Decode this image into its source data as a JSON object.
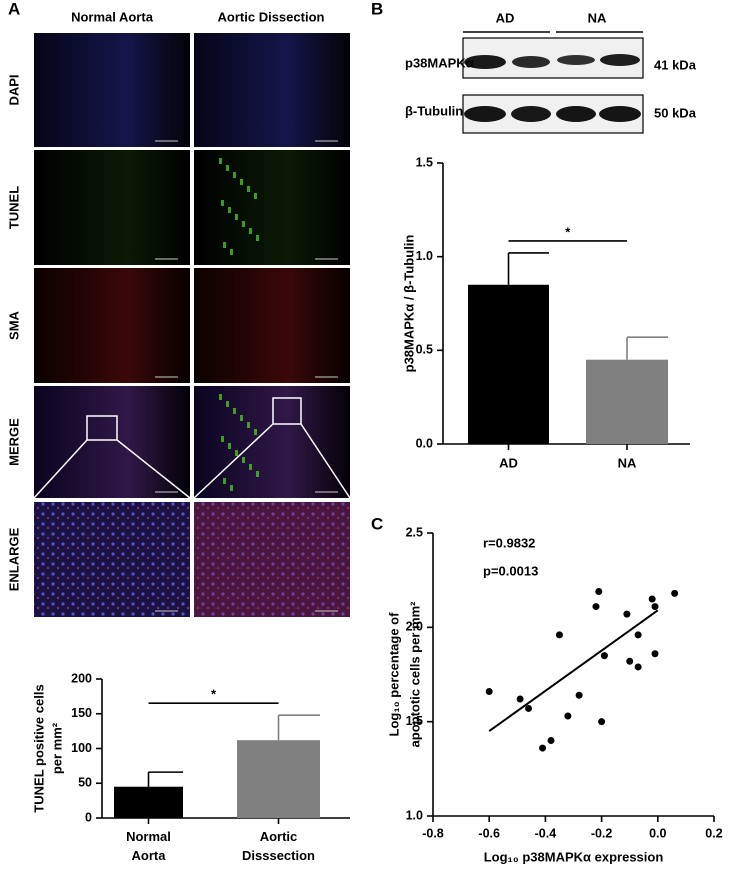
{
  "panel_labels": [
    "A",
    "B",
    "C"
  ],
  "microscopy": {
    "columns": [
      "Normal Aorta",
      "Aortic Dissection"
    ],
    "rows": [
      "DAPI",
      "TUNEL",
      "SMA",
      "MERGE",
      "ENLARGE"
    ]
  },
  "blot": {
    "groups": [
      "AD",
      "NA"
    ],
    "proteins": [
      "p38MAPKα",
      "β-Tubulin"
    ],
    "sizes": [
      "41 kDa",
      "50 kDa"
    ]
  },
  "chart_data": [
    {
      "type": "bar",
      "y_label": [
        "TUNEL positive cells",
        "per mm²"
      ],
      "categories": [
        "Normal Aorta",
        "Aortic Disssection"
      ],
      "values": [
        45,
        112
      ],
      "errors": [
        21,
        36
      ],
      "colors": [
        "#000000",
        "#808080"
      ],
      "ylim": [
        0,
        200
      ],
      "yticks": [
        0,
        50,
        100,
        150,
        200
      ],
      "annotation": "*"
    },
    {
      "type": "bar",
      "y_label": [
        "p38MAPKα / β-Tubulin"
      ],
      "categories": [
        "AD",
        "NA"
      ],
      "values": [
        0.85,
        0.45
      ],
      "errors": [
        0.17,
        0.12
      ],
      "colors": [
        "#000000",
        "#808080"
      ],
      "ylim": [
        0,
        1.5
      ],
      "yticks": [
        {
          "value": 0,
          "label": "0.0"
        },
        0.5,
        {
          "value": 1,
          "label": "1.0"
        },
        1.5
      ],
      "annotation": "*"
    },
    {
      "type": "scatter",
      "x_label": "Log₁₀ p38MAPKα expression",
      "y_label": [
        "Log₁₀ percentage of",
        "apoptotic cells per mm²"
      ],
      "annotations": [
        "r=0.9832",
        "p=0.0013"
      ],
      "x": [
        -0.6,
        -0.49,
        -0.46,
        -0.41,
        -0.38,
        -0.35,
        -0.32,
        -0.28,
        -0.22,
        -0.21,
        -0.2,
        -0.19,
        -0.11,
        -0.1,
        -0.07,
        -0.07,
        -0.02,
        -0.01,
        -0.01,
        0.06
      ],
      "values": [
        1.66,
        1.62,
        1.57,
        1.36,
        1.4,
        1.96,
        1.53,
        1.64,
        2.11,
        2.19,
        1.5,
        1.85,
        2.07,
        1.82,
        1.96,
        1.79,
        2.15,
        2.11,
        1.86,
        2.18
      ],
      "color": "#000000",
      "fit_line": {
        "x": [
          -0.6,
          0
        ],
        "y": [
          1.45,
          2.09
        ]
      },
      "xlim": [
        -0.8,
        0.2
      ],
      "xticks": [
        -0.8,
        -0.6,
        -0.4,
        -0.2,
        {
          "value": 0,
          "label": "0.0"
        },
        0.2
      ],
      "ylim": [
        1,
        2.5
      ],
      "yticks": [
        {
          "value": 1,
          "label": "1.0"
        },
        1.5,
        {
          "value": 2,
          "label": "2.0"
        },
        2.5
      ]
    }
  ]
}
